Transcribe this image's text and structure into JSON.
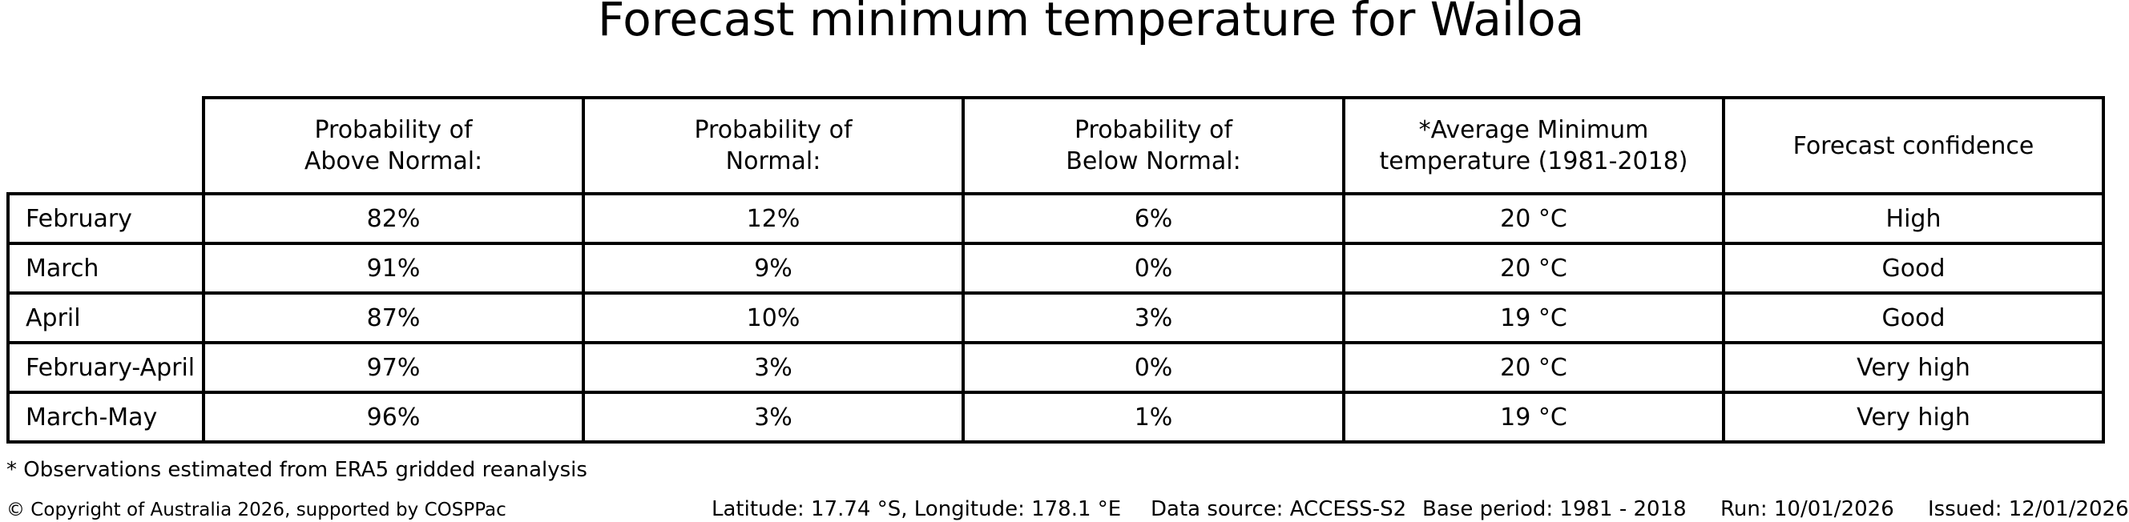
{
  "title": "Forecast minimum temperature for Wailoa",
  "chart_data": {
    "type": "table",
    "title": "Forecast minimum temperature for Wailoa",
    "columns": [
      "",
      "Probability of Above Normal:",
      "Probability of Normal:",
      "Probability of Below Normal:",
      "*Average Minimum temperature (1981-2018)",
      "Forecast confidence"
    ],
    "rows": [
      [
        "February",
        "82%",
        "12%",
        "6%",
        "20 °C",
        "High"
      ],
      [
        "March",
        "91%",
        "9%",
        "0%",
        "20 °C",
        "Good"
      ],
      [
        "April",
        "87%",
        "10%",
        "3%",
        "19 °C",
        "Good"
      ],
      [
        "February-April",
        "97%",
        "3%",
        "0%",
        "20 °C",
        "Very high"
      ],
      [
        "March-May",
        "96%",
        "3%",
        "1%",
        "19 °C",
        "Very high"
      ]
    ],
    "footnote": "* Observations estimated from ERA5 gridded reanalysis"
  },
  "table": {
    "display_headers": [
      "",
      "Probability of\nAbove Normal:",
      "Probability of\nNormal:",
      "Probability of\nBelow Normal:",
      "*Average Minimum\ntemperature (1981-2018)",
      "Forecast confidence"
    ],
    "column_slugs": [
      "month",
      "above-normal",
      "normal",
      "below-normal",
      "avg-min-temp",
      "confidence"
    ]
  },
  "footnote": "* Observations estimated from ERA5 gridded reanalysis",
  "footer": {
    "copyright": "© Copyright of Australia 2026, supported by COSPPac",
    "latitude_longitude": "Latitude: 17.74 °S, Longitude: 178.1 °E",
    "data_source": "Data source: ACCESS-S2",
    "base_period": "Base period: 1981 - 2018",
    "run": "Run: 10/01/2026",
    "issued": "Issued: 12/01/2026"
  },
  "colors": {
    "text": "#000000",
    "background": "#ffffff",
    "table_border": "#000000"
  }
}
